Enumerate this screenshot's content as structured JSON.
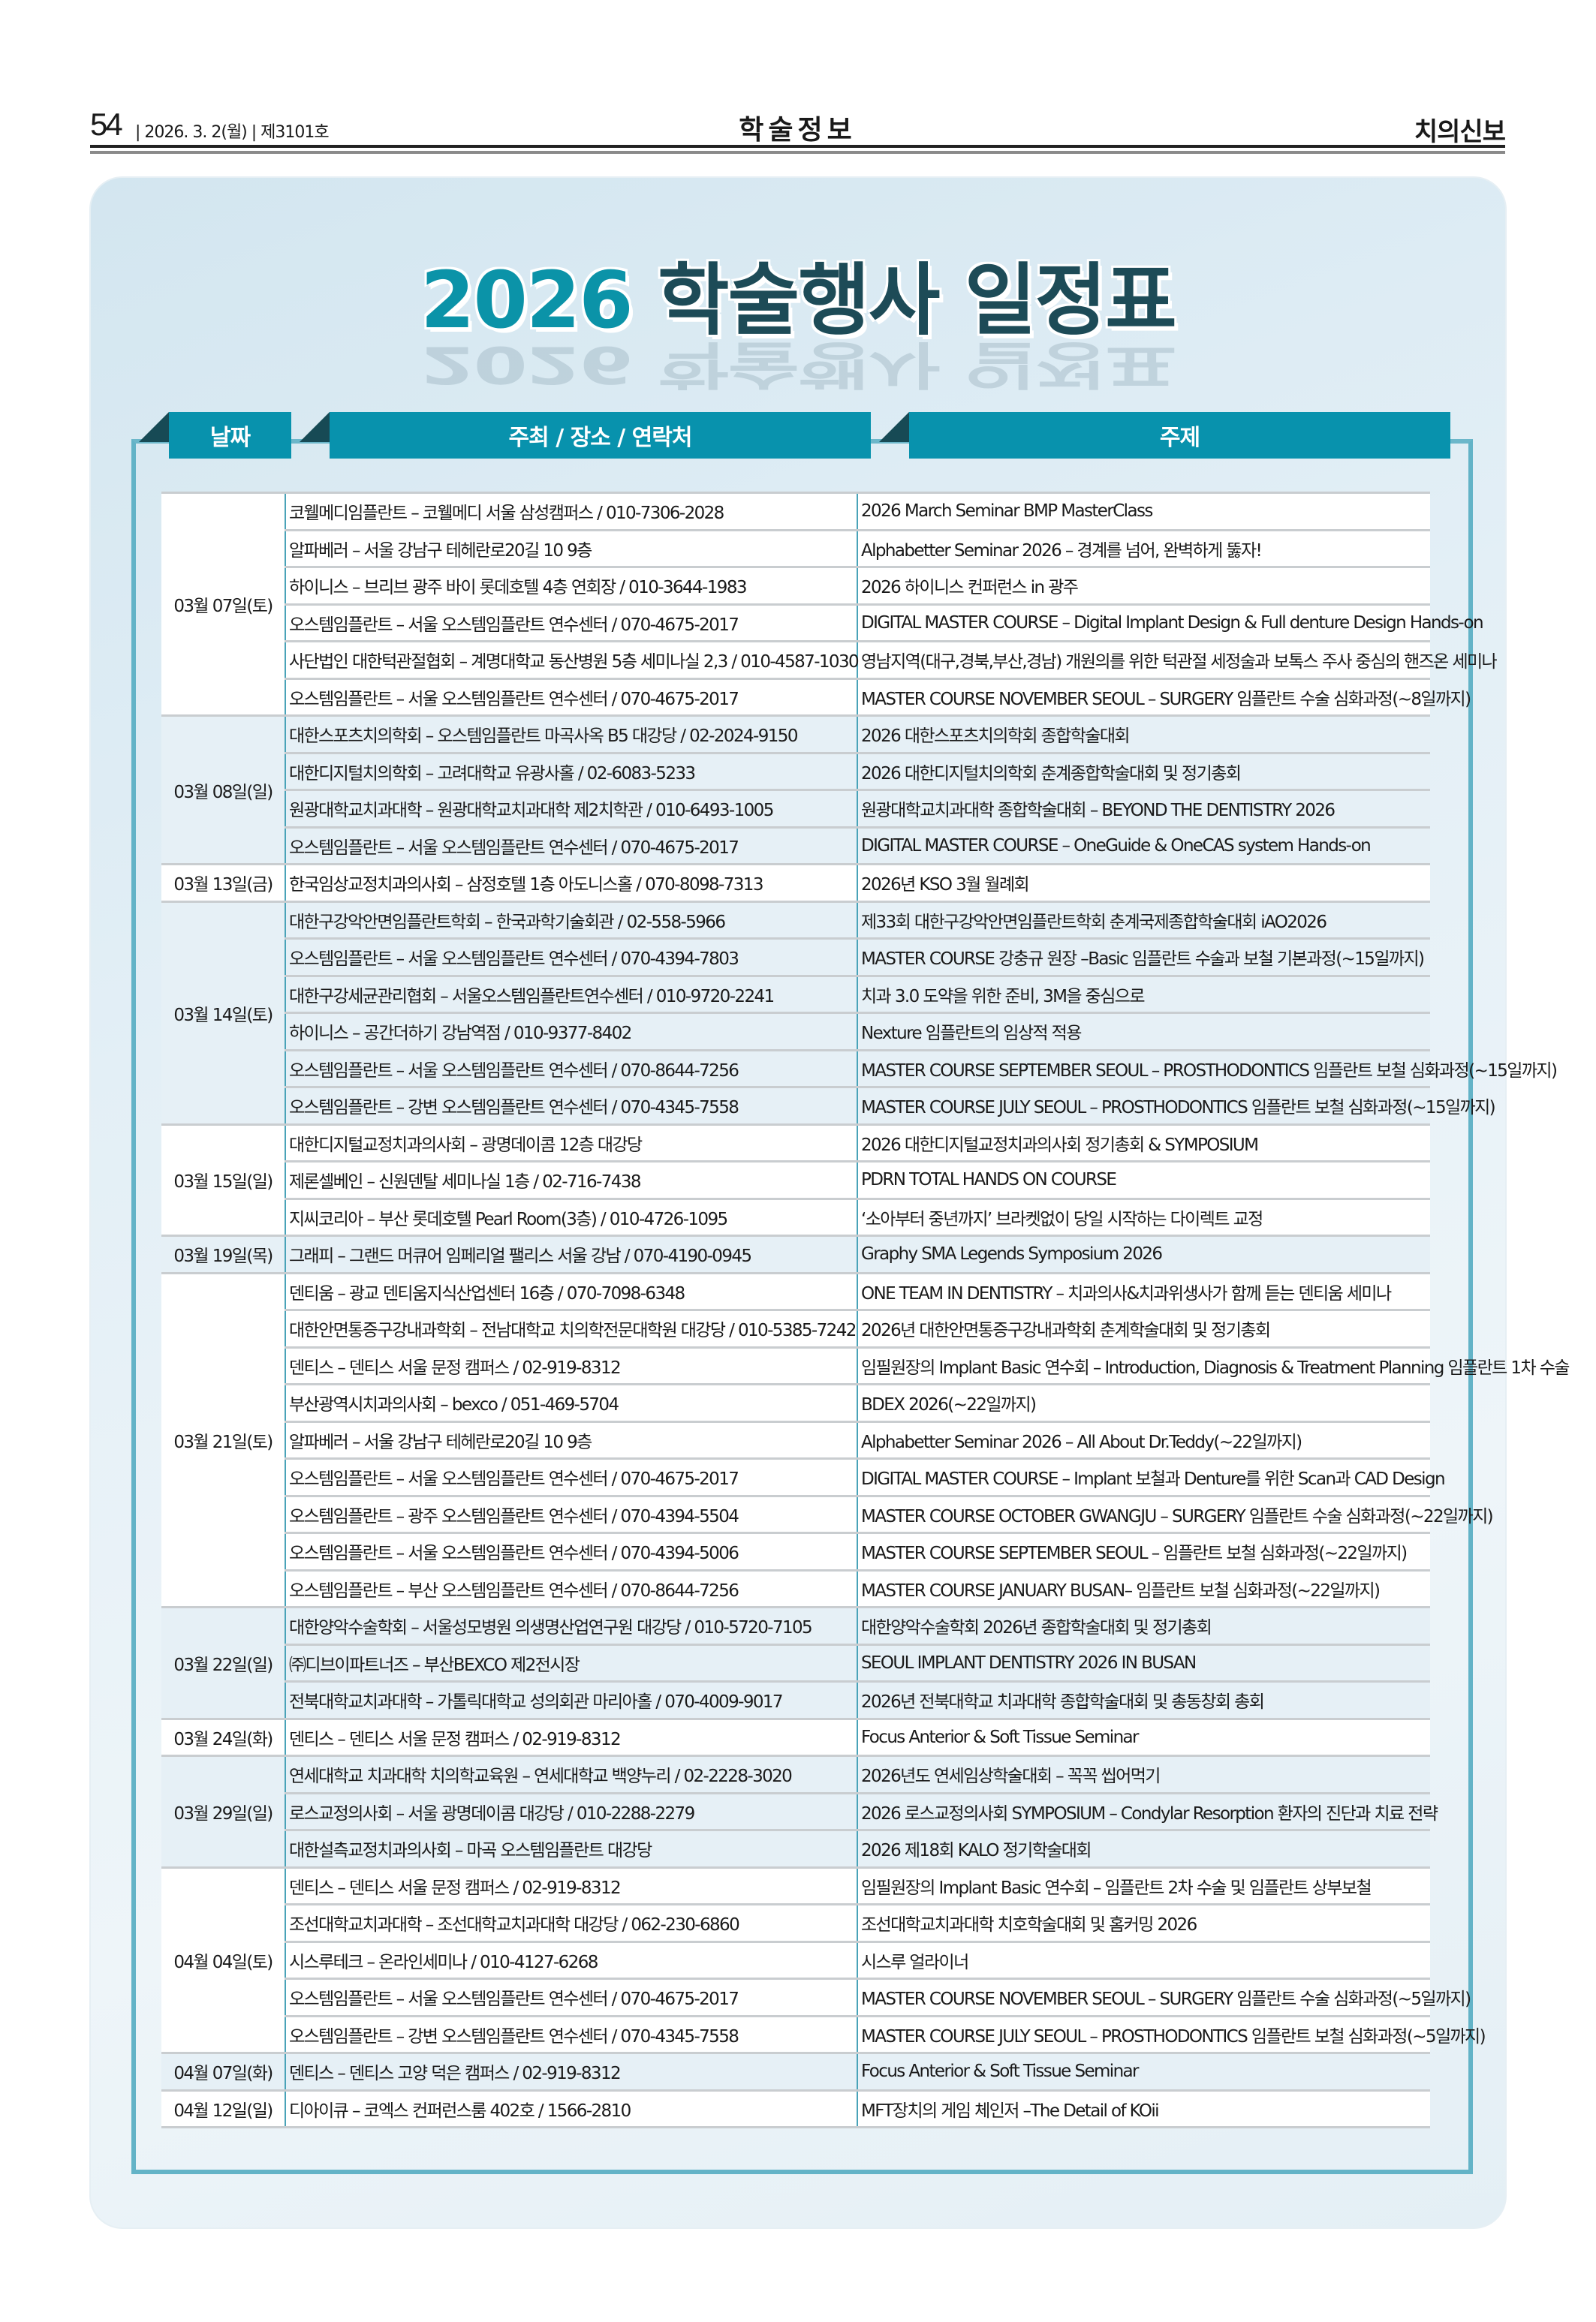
{
  "page_header": {
    "page_number": "54",
    "date_issue": "| 2026. 3. 2(월) | 제3101호",
    "section": "학술정보",
    "paper_name": "치의신보"
  },
  "title": {
    "year": "2026",
    "main": "학술행사 일정표"
  },
  "columns": {
    "date": "날짜",
    "host": "주최 / 장소 / 연락처",
    "topic": "주제"
  },
  "colors": {
    "accent": "#0892ad",
    "title_dark": "#1d4b57",
    "alt_row": "#e6f0f6"
  },
  "schedule": [
    {
      "date": "03월 07일(토)",
      "events": [
        {
          "host": "코웰메디임플란트 – 코웰메디 서울 삼성캠퍼스 / 010-7306-2028",
          "topic": "2026 March Seminar BMP MasterClass"
        },
        {
          "host": "알파베러 – 서울 강남구 테헤란로20길 10 9층",
          "topic": "Alphabetter Seminar 2026 – 경계를 넘어, 완벽하게 뚫자!"
        },
        {
          "host": "하이니스 – 브리브 광주 바이 롯데호텔 4층 연회장 / 010-3644-1983",
          "topic": "2026 하이니스 컨퍼런스 in 광주"
        },
        {
          "host": "오스템임플란트 – 서울 오스템임플란트 연수센터 / 070-4675-2017",
          "topic": "DIGITAL MASTER COURSE – Digital Implant Design & Full denture Design Hands-on"
        },
        {
          "host": "사단법인 대한턱관절협회 – 계명대학교 동산병원 5층 세미나실 2,3 / 010-4587-1030",
          "topic": "영남지역(대구,경북,부산,경남) 개원의를 위한 턱관절 세정술과 보톡스 주사 중심의 핸즈온 세미나"
        },
        {
          "host": "오스템임플란트 – 서울 오스템임플란트 연수센터 / 070-4675-2017",
          "topic": "MASTER COURSE NOVEMBER SEOUL – SURGERY 임플란트 수술 심화과정(~8일까지)"
        }
      ]
    },
    {
      "date": "03월 08일(일)",
      "events": [
        {
          "host": "대한스포츠치의학회 – 오스템임플란트 마곡사옥 B5 대강당 / 02-2024-9150",
          "topic": "2026 대한스포츠치의학회 종합학술대회"
        },
        {
          "host": "대한디지털치의학회 – 고려대학교 유광사홀 / 02-6083-5233",
          "topic": "2026 대한디지털치의학회 춘계종합학술대회 및 정기총회"
        },
        {
          "host": "원광대학교치과대학 – 원광대학교치과대학 제2치학관 / 010-6493-1005",
          "topic": "원광대학교치과대학 종합학술대회 – BEYOND THE DENTISTRY 2026"
        },
        {
          "host": "오스템임플란트 – 서울 오스템임플란트 연수센터 / 070-4675-2017",
          "topic": "DIGITAL MASTER COURSE – OneGuide & OneCAS system Hands-on"
        }
      ]
    },
    {
      "date": "03월 13일(금)",
      "events": [
        {
          "host": "한국임상교정치과의사회 – 삼정호텔 1층 아도니스홀 / 070-8098-7313",
          "topic": "2026년 KSO 3월 월례회"
        }
      ]
    },
    {
      "date": "03월 14일(토)",
      "events": [
        {
          "host": "대한구강악안면임플란트학회 – 한국과학기술회관 / 02-558-5966",
          "topic": "제33회 대한구강악안면임플란트학회 춘계국제종합학술대회 iAO2026"
        },
        {
          "host": "오스템임플란트 – 서울 오스템임플란트 연수센터 / 070-4394-7803",
          "topic": "MASTER COURSE 강충규 원장 –Basic 임플란트 수술과 보철 기본과정(~15일까지)"
        },
        {
          "host": "대한구강세균관리협회 – 서울오스템임플란트연수센터 / 010-9720-2241",
          "topic": "치과 3.0 도약을 위한 준비, 3M을 중심으로"
        },
        {
          "host": "하이니스 – 공간더하기 강남역점 / 010-9377-8402",
          "topic": "Nexture 임플란트의 임상적 적용"
        },
        {
          "host": "오스템임플란트 – 서울 오스템임플란트 연수센터 / 070-8644-7256",
          "topic": "MASTER COURSE SEPTEMBER SEOUL – PROSTHODONTICS 임플란트 보철 심화과정(~15일까지)"
        },
        {
          "host": "오스템임플란트 – 강변 오스템임플란트 연수센터 / 070-4345-7558",
          "topic": "MASTER COURSE JULY SEOUL – PROSTHODONTICS 임플란트 보철 심화과정(~15일까지)"
        }
      ]
    },
    {
      "date": "03월 15일(일)",
      "events": [
        {
          "host": "대한디지털교정치과의사회 – 광명데이콤 12층 대강당",
          "topic": "2026 대한디지털교정치과의사회 정기총회 & SYMPOSIUM"
        },
        {
          "host": "제론셀베인 – 신원덴탈 세미나실 1층 / 02-716-7438",
          "topic": "PDRN TOTAL HANDS ON COURSE"
        },
        {
          "host": "지씨코리아 – 부산 롯데호텔 Pearl Room(3층) / 010-4726-1095",
          "topic": "‘소아부터 중년까지’ 브라켓없이 당일 시작하는 다이렉트 교정"
        }
      ]
    },
    {
      "date": "03월 19일(목)",
      "events": [
        {
          "host": "그래피 – 그랜드 머큐어 임페리얼 팰리스 서울 강남 / 070-4190-0945",
          "topic": "Graphy SMA Legends Symposium 2026"
        }
      ]
    },
    {
      "date": "03월 21일(토)",
      "events": [
        {
          "host": "덴티움 – 광교 덴티움지식산업센터 16층 / 070-7098-6348",
          "topic": "ONE TEAM IN DENTISTRY – 치과의사&치과위생사가 함께 듣는 덴티움 세미나"
        },
        {
          "host": "대한안면통증구강내과학회 – 전남대학교 치의학전문대학원 대강당 / 010-5385-7242",
          "topic": "2026년 대한안면통증구강내과학회 춘계학술대회 및 정기총회"
        },
        {
          "host": "덴티스 – 덴티스 서울 문정 캠퍼스 / 02-919-8312",
          "topic": "임필원장의 Implant Basic 연수회 – Introduction, Diagnosis & Treatment Planning 임플란트 1차 수술"
        },
        {
          "host": "부산광역시치과의사회 – bexco / 051-469-5704",
          "topic": "BDEX 2026(~22일까지)"
        },
        {
          "host": "알파베러 – 서울 강남구 테헤란로20길 10 9층",
          "topic": "Alphabetter Seminar 2026 – All About Dr.Teddy(~22일까지)"
        },
        {
          "host": "오스템임플란트 – 서울 오스템임플란트 연수센터 / 070-4675-2017",
          "topic": "DIGITAL MASTER COURSE – Implant 보철과 Denture를 위한 Scan과 CAD Design"
        },
        {
          "host": "오스템임플란트 – 광주 오스템임플란트 연수센터 / 070-4394-5504",
          "topic": "MASTER COURSE OCTOBER GWANGJU – SURGERY 임플란트 수술 심화과정(~22일까지)"
        },
        {
          "host": "오스템임플란트 – 서울 오스템임플란트 연수센터 / 070-4394-5006",
          "topic": "MASTER COURSE SEPTEMBER SEOUL – 임플란트 보철 심화과정(~22일까지)"
        },
        {
          "host": "오스템임플란트 – 부산 오스템임플란트 연수센터 / 070-8644-7256",
          "topic": "MASTER COURSE JANUARY BUSAN– 임플란트 보철 심화과정(~22일까지)"
        }
      ]
    },
    {
      "date": "03월 22일(일)",
      "events": [
        {
          "host": "대한양악수술학회 – 서울성모병원 의생명산업연구원 대강당 / 010-5720-7105",
          "topic": "대한양악수술학회 2026년 종합학술대회 및 정기총회"
        },
        {
          "host": "㈜디브이파트너즈 – 부산BEXCO 제2전시장",
          "topic": "SEOUL IMPLANT DENTISTRY 2026 IN BUSAN"
        },
        {
          "host": "전북대학교치과대학 – 가톨릭대학교 성의회관 마리아홀 / 070-4009-9017",
          "topic": "2026년 전북대학교 치과대학 종합학술대회 및 총동창회 총회"
        }
      ]
    },
    {
      "date": "03월 24일(화)",
      "events": [
        {
          "host": "덴티스 – 덴티스 서울 문정 캠퍼스 / 02-919-8312",
          "topic": "Focus Anterior & Soft Tissue Seminar"
        }
      ]
    },
    {
      "date": "03월 29일(일)",
      "events": [
        {
          "host": "연세대학교 치과대학 치의학교육원 – 연세대학교 백양누리 / 02-2228-3020",
          "topic": "2026년도 연세임상학술대회 – 꼭꼭 씹어먹기"
        },
        {
          "host": "로스교정의사회 – 서울 광명데이콤 대강당 / 010-2288-2279",
          "topic": "2026 로스교정의사회 SYMPOSIUM – Condylar Resorption 환자의 진단과 치료 전략"
        },
        {
          "host": "대한설측교정치과의사회 – 마곡 오스템임플란트 대강당",
          "topic": "2026 제18회 KALO 정기학술대회"
        }
      ]
    },
    {
      "date": "04월 04일(토)",
      "events": [
        {
          "host": "덴티스 – 덴티스 서울 문정 캠퍼스 / 02-919-8312",
          "topic": "임필원장의 Implant Basic 연수회 – 임플란트 2차 수술 및 임플란트 상부보철"
        },
        {
          "host": "조선대학교치과대학 – 조선대학교치과대학 대강당 / 062-230-6860",
          "topic": "조선대학교치과대학 치호학술대회 및 홈커밍 2026"
        },
        {
          "host": "시스루테크 – 온라인세미나 / 010-4127-6268",
          "topic": "시스루 얼라이너"
        },
        {
          "host": "오스템임플란트 – 서울 오스템임플란트 연수센터 / 070-4675-2017",
          "topic": "MASTER COURSE NOVEMBER SEOUL – SURGERY 임플란트 수술 심화과정(~5일까지)"
        },
        {
          "host": "오스템임플란트 – 강변 오스템임플란트 연수센터 / 070-4345-7558",
          "topic": "MASTER COURSE JULY SEOUL – PROSTHODONTICS 임플란트 보철 심화과정(~5일까지)"
        }
      ]
    },
    {
      "date": "04월 07일(화)",
      "events": [
        {
          "host": "덴티스 – 덴티스 고양 덕은 캠퍼스 / 02-919-8312",
          "topic": "Focus Anterior & Soft Tissue Seminar"
        }
      ]
    },
    {
      "date": "04월 12일(일)",
      "events": [
        {
          "host": "디아이큐 – 코엑스 컨퍼런스룸 402호 / 1566-2810",
          "topic": "MFT장치의 게임 체인저 –The Detail of KOii"
        }
      ]
    }
  ]
}
